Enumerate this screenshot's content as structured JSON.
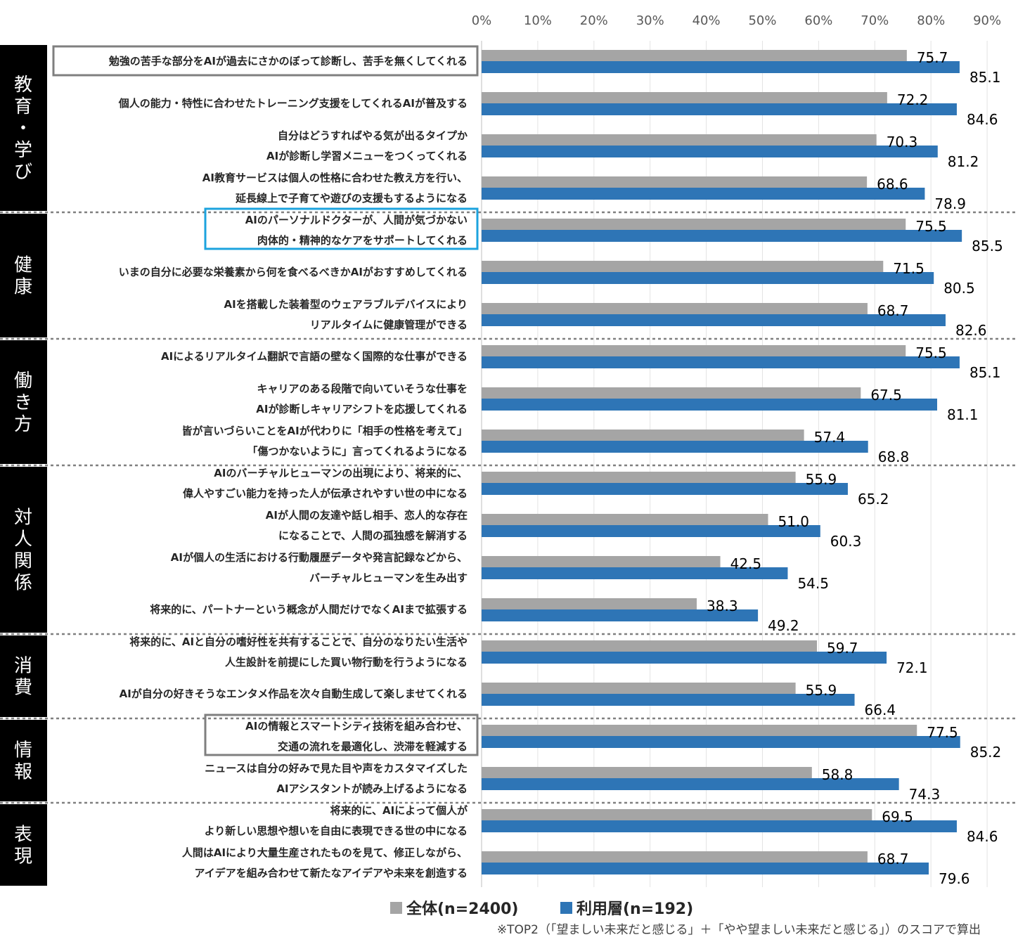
{
  "chart_data": {
    "type": "bar",
    "orientation": "horizontal",
    "xlim": [
      0,
      90
    ],
    "x_ticks": [
      "0%",
      "10%",
      "20%",
      "30%",
      "40%",
      "50%",
      "60%",
      "70%",
      "80%",
      "90%"
    ],
    "grid": "vertical",
    "legend_position": "bottom-center",
    "series": [
      {
        "name": "全体(n=2400)",
        "color": "#a5a5a5"
      },
      {
        "name": "利用層(n=192)",
        "color": "#2e75b6"
      }
    ],
    "groups": [
      {
        "label": "教育・学び",
        "items": [
          {
            "lines": [
              "勉強の苦手な部分をAIが過去にさかのぼって診断し、苦手を無くしてくれる"
            ],
            "all": 75.7,
            "users": 85.1,
            "box": "#7f7f7f"
          },
          {
            "lines": [
              "個人の能力・特性に合わせたトレーニング支援をしてくれるAIが普及する"
            ],
            "all": 72.2,
            "users": 84.6
          },
          {
            "lines": [
              "自分はどうすればやる気が出るタイプか",
              "AIが診断し学習メニューをつくってくれる"
            ],
            "all": 70.3,
            "users": 81.2
          },
          {
            "lines": [
              "AI教育サービスは個人の性格に合わせた教え方を行い、",
              "延長線上で子育てや遊びの支援もするようになる"
            ],
            "all": 68.6,
            "users": 78.9
          }
        ]
      },
      {
        "label": "健康",
        "items": [
          {
            "lines": [
              "AIのパーソナルドクターが、人間が気づかない",
              "肉体的・精神的なケアをサポートしてくれる"
            ],
            "all": 75.5,
            "users": 85.5,
            "box": "#1ca3de"
          },
          {
            "lines": [
              "いまの自分に必要な栄養素から何を食べるべきかAIがおすすめしてくれる"
            ],
            "all": 71.5,
            "users": 80.5
          },
          {
            "lines": [
              "AIを搭載した装着型のウェアラブルデバイスにより",
              "リアルタイムに健康管理ができる"
            ],
            "all": 68.7,
            "users": 82.6
          }
        ]
      },
      {
        "label": "働き方",
        "items": [
          {
            "lines": [
              "AIによるリアルタイム翻訳で言語の壁なく国際的な仕事ができる"
            ],
            "all": 75.5,
            "users": 85.1
          },
          {
            "lines": [
              "キャリアのある段階で向いていそうな仕事を",
              "AIが診断しキャリアシフトを応援してくれる"
            ],
            "all": 67.5,
            "users": 81.1
          },
          {
            "lines": [
              "皆が言いづらいことをAIが代わりに「相手の性格を考えて」",
              "「傷つかないように」言ってくれるようになる"
            ],
            "all": 57.4,
            "users": 68.8
          }
        ]
      },
      {
        "label": "対人関係",
        "items": [
          {
            "lines": [
              "AIのバーチャルヒューマンの出現により、将来的に、",
              "偉人やすごい能力を持った人が伝承されやすい世の中になる"
            ],
            "all": 55.9,
            "users": 65.2
          },
          {
            "lines": [
              "AIが人間の友達や話し相手、恋人的な存在",
              "になることで、人間の孤独感を解消する"
            ],
            "all": 51.0,
            "users": 60.3
          },
          {
            "lines": [
              "AIが個人の生活における行動履歴データや発言記録などから、",
              "バーチャルヒューマンを生み出す"
            ],
            "all": 42.5,
            "users": 54.5
          },
          {
            "lines": [
              "将来的に、パートナーという概念が人間だけでなくAIまで拡張する"
            ],
            "all": 38.3,
            "users": 49.2
          }
        ]
      },
      {
        "label": "消費",
        "items": [
          {
            "lines": [
              "将来的に、AIと自分の嗜好性を共有することで、自分のなりたい生活や",
              "人生設計を前提にした買い物行動を行うようになる"
            ],
            "all": 59.7,
            "users": 72.1
          },
          {
            "lines": [
              "AIが自分の好きそうなエンタメ作品を次々自動生成して楽しませてくれる"
            ],
            "all": 55.9,
            "users": 66.4
          }
        ]
      },
      {
        "label": "情報",
        "items": [
          {
            "lines": [
              "AIの情報とスマートシティ技術を組み合わせ、",
              "交通の流れを最適化し、渋滞を軽減する"
            ],
            "all": 77.5,
            "users": 85.2,
            "box": "#7f7f7f"
          },
          {
            "lines": [
              "ニュースは自分の好みで見た目や声をカスタマイズした",
              "AIアシスタントが読み上げるようになる"
            ],
            "all": 58.8,
            "users": 74.3
          }
        ]
      },
      {
        "label": "表現",
        "items": [
          {
            "lines": [
              "将来的に、AIによって個人が",
              "より新しい思想や想いを自由に表現できる世の中になる"
            ],
            "all": 69.5,
            "users": 84.6
          },
          {
            "lines": [
              "人間はAIにより大量生産されたものを見て、修正しながら、",
              "アイデアを組み合わせて新たなアイデアや未来を創造する"
            ],
            "all": 68.7,
            "users": 79.6
          }
        ]
      }
    ],
    "note": "※TOP2（「望ましい未来だと感じる」＋「やや望ましい未来だと感じる」）のスコアで算出"
  }
}
